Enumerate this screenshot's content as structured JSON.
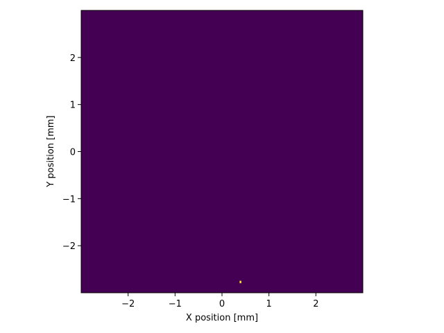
{
  "chart_data": {
    "type": "heatmap",
    "title": "",
    "xlabel": "X position [mm]",
    "ylabel": "Y position [mm]",
    "xlim": [
      -3.0,
      3.0
    ],
    "ylim": [
      -3.0,
      3.0
    ],
    "xticks": [
      -2,
      -1,
      0,
      1,
      2
    ],
    "yticks": [
      -2,
      -1,
      0,
      1,
      2
    ],
    "xtick_labels": [
      "−2",
      "−1",
      "0",
      "1",
      "2"
    ],
    "ytick_labels": [
      "−2",
      "−1",
      "0",
      "1",
      "2"
    ],
    "colormap": "viridis",
    "background_color": "#440154",
    "hot_color": "#fde725",
    "bin_size": 0.03,
    "hot_bins": [
      {
        "x": 0.39,
        "y": -2.76,
        "value": 1
      }
    ],
    "grid": false,
    "legend": "none"
  }
}
